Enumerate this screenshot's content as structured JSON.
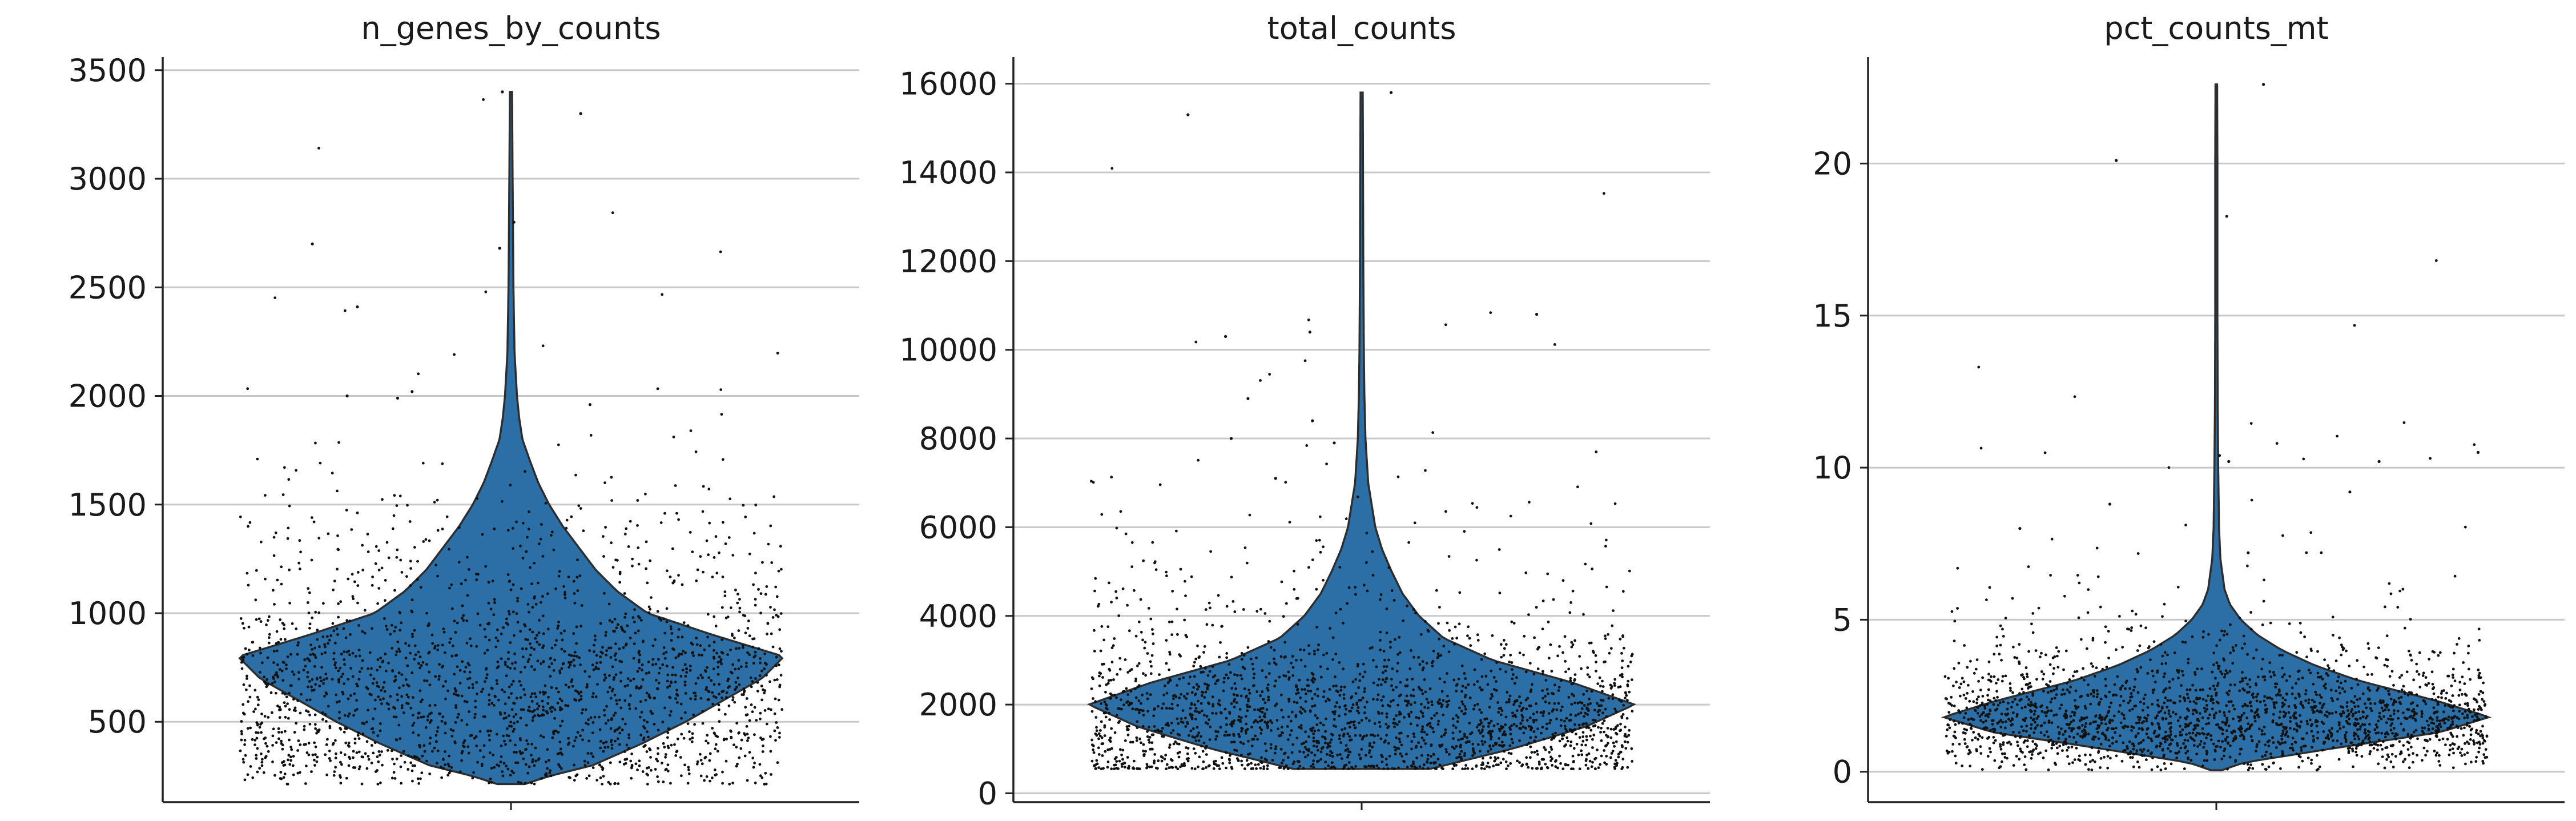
{
  "chart_data": [
    {
      "type": "violin",
      "title": "n_genes_by_counts",
      "xlabel": "",
      "ylabel": "",
      "ylim": [
        130,
        3560
      ],
      "yticks": [
        500,
        1000,
        1500,
        2000,
        2500,
        3000,
        3500
      ],
      "grid": true,
      "violin": {
        "max_width_at": 800,
        "profile": [
          [
            213,
            0.05
          ],
          [
            250,
            0.14
          ],
          [
            300,
            0.3
          ],
          [
            400,
            0.48
          ],
          [
            500,
            0.64
          ],
          [
            600,
            0.78
          ],
          [
            700,
            0.92
          ],
          [
            800,
            1.0
          ],
          [
            900,
            0.74
          ],
          [
            1000,
            0.5
          ],
          [
            1100,
            0.39
          ],
          [
            1200,
            0.31
          ],
          [
            1300,
            0.25
          ],
          [
            1400,
            0.19
          ],
          [
            1500,
            0.14
          ],
          [
            1600,
            0.1
          ],
          [
            1700,
            0.07
          ],
          [
            1800,
            0.042
          ],
          [
            1900,
            0.03
          ],
          [
            2000,
            0.022
          ],
          [
            2200,
            0.013
          ],
          [
            2500,
            0.009
          ],
          [
            3000,
            0.006
          ],
          [
            3400,
            0.004
          ]
        ]
      },
      "outliers": [
        3300,
        3400,
        2800,
        2700,
        2680,
        2410,
        2020,
        2000,
        1990,
        1960
      ]
    },
    {
      "type": "violin",
      "title": "total_counts",
      "xlabel": "",
      "ylabel": "",
      "ylim": [
        -200,
        16600
      ],
      "yticks": [
        0,
        2000,
        4000,
        6000,
        8000,
        10000,
        12000,
        14000,
        16000
      ],
      "grid": true,
      "violin": {
        "max_width_at": 2000,
        "profile": [
          [
            550,
            0.25
          ],
          [
            1000,
            0.55
          ],
          [
            1500,
            0.82
          ],
          [
            2000,
            1.0
          ],
          [
            2500,
            0.77
          ],
          [
            3000,
            0.48
          ],
          [
            3500,
            0.3
          ],
          [
            4000,
            0.21
          ],
          [
            4500,
            0.15
          ],
          [
            5000,
            0.11
          ],
          [
            5500,
            0.075
          ],
          [
            6000,
            0.05
          ],
          [
            7000,
            0.024
          ],
          [
            8000,
            0.014
          ],
          [
            9000,
            0.01
          ],
          [
            10000,
            0.008
          ],
          [
            12000,
            0.006
          ],
          [
            14000,
            0.005
          ],
          [
            15800,
            0.004
          ]
        ]
      },
      "outliers": [
        15800,
        15300,
        10800,
        10400,
        10300,
        8900,
        8400,
        8000,
        7900,
        7100
      ]
    },
    {
      "type": "violin",
      "title": "pct_counts_mt",
      "xlabel": "",
      "ylabel": "",
      "ylim": [
        -1,
        23.5
      ],
      "yticks": [
        0,
        5,
        10,
        15,
        20
      ],
      "grid": true,
      "violin": {
        "max_width_at": 1.8,
        "profile": [
          [
            0.05,
            0.02
          ],
          [
            0.3,
            0.1
          ],
          [
            0.8,
            0.45
          ],
          [
            1.3,
            0.82
          ],
          [
            1.8,
            1.0
          ],
          [
            2.3,
            0.82
          ],
          [
            3,
            0.52
          ],
          [
            3.5,
            0.36
          ],
          [
            4,
            0.24
          ],
          [
            4.5,
            0.15
          ],
          [
            5,
            0.09
          ],
          [
            5.5,
            0.05
          ],
          [
            6,
            0.03
          ],
          [
            7,
            0.015
          ],
          [
            8,
            0.01
          ],
          [
            10,
            0.007
          ],
          [
            12,
            0.005
          ],
          [
            15,
            0.004
          ],
          [
            20,
            0.004
          ],
          [
            22.6,
            0.003
          ]
        ]
      },
      "outliers": [
        22.6,
        20.1,
        10.5,
        10.4,
        10.2,
        10.2,
        9.2,
        8.8,
        8.0,
        7.2
      ]
    }
  ]
}
